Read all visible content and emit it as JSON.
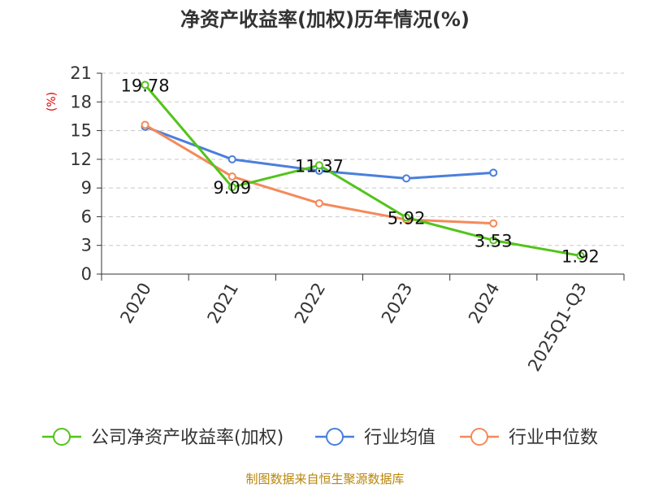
{
  "chart_data": {
    "type": "line",
    "title": "净资产收益率(加权)历年情况(%)",
    "ylabel": "(%)",
    "xlabel": "",
    "categories": [
      "2020",
      "2021",
      "2022",
      "2023",
      "2024",
      "2025Q1-Q3"
    ],
    "ylim": [
      0,
      21
    ],
    "yticks": [
      0,
      3,
      6,
      9,
      12,
      15,
      18,
      21
    ],
    "grid": true,
    "legend_position": "bottom",
    "series": [
      {
        "name": "公司净资产收益率(加权)",
        "color": "#52c41a",
        "values": [
          19.78,
          9.09,
          11.37,
          5.92,
          3.53,
          1.92
        ],
        "labels": [
          "19.78",
          "9.09",
          "11.37",
          "5.92",
          "3.53",
          "1.92"
        ]
      },
      {
        "name": "行业均值",
        "color": "#4a7fdc",
        "values": [
          15.4,
          12.0,
          10.8,
          10.0,
          10.6,
          null
        ]
      },
      {
        "name": "行业中位数",
        "color": "#f5895a",
        "values": [
          15.6,
          10.2,
          7.4,
          5.7,
          5.3,
          null
        ]
      }
    ]
  },
  "source": "制图数据来自恒生聚源数据库"
}
